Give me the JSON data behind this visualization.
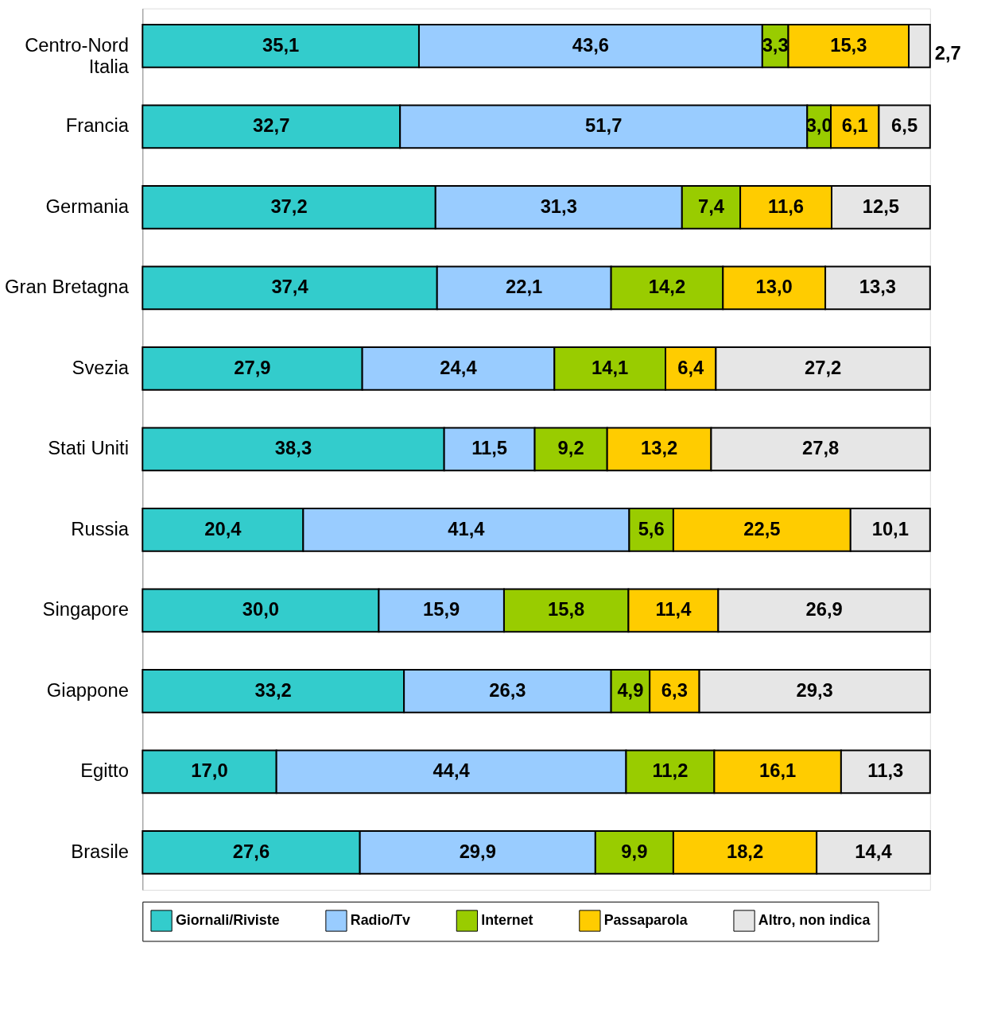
{
  "chart_data": {
    "type": "bar",
    "orientation": "horizontal",
    "stacked": true,
    "legend": "bottom",
    "grid": false,
    "categories": [
      "Centro-Nord\nItalia",
      "Francia",
      "Germania",
      "Gran Bretagna",
      "Svezia",
      "Stati Uniti",
      "Russia",
      "Singapore",
      "Giappone",
      "Egitto",
      "Brasile"
    ],
    "series": [
      {
        "name": "Giornali/Riviste",
        "color": "#33cccc",
        "values": [
          35.1,
          32.7,
          37.2,
          37.4,
          27.9,
          38.3,
          20.4,
          30.0,
          33.2,
          17.0,
          27.6
        ],
        "value_labels": [
          "35,1",
          "32,7",
          "37,2",
          "37,4",
          "27,9",
          "38,3",
          "20,4",
          "30,0",
          "33,2",
          "17,0",
          "27,6"
        ]
      },
      {
        "name": "Radio/Tv",
        "color": "#99ccff",
        "values": [
          43.6,
          51.7,
          31.3,
          22.1,
          24.4,
          11.5,
          41.4,
          15.9,
          26.3,
          44.4,
          29.9
        ],
        "value_labels": [
          "43,6",
          "51,7",
          "31,3",
          "22,1",
          "24,4",
          "11,5",
          "41,4",
          "15,9",
          "26,3",
          "44,4",
          "29,9"
        ]
      },
      {
        "name": "Internet",
        "color": "#99cc00",
        "values": [
          3.3,
          3.0,
          7.4,
          14.2,
          14.1,
          9.2,
          5.6,
          15.8,
          4.9,
          11.2,
          9.9
        ],
        "value_labels": [
          "3,3",
          "3,0",
          "7,4",
          "14,2",
          "14,1",
          "9,2",
          "5,6",
          "15,8",
          "4,9",
          "11,2",
          "9,9"
        ]
      },
      {
        "name": "Passaparola",
        "color": "#ffcc00",
        "values": [
          15.3,
          6.1,
          11.6,
          13.0,
          6.4,
          13.2,
          22.5,
          11.4,
          6.3,
          16.1,
          18.2
        ],
        "value_labels": [
          "15,3",
          "6,1",
          "11,6",
          "13,0",
          "6,4",
          "13,2",
          "22,5",
          "11,4",
          "6,3",
          "16,1",
          "18,2"
        ]
      },
      {
        "name": "Altro, non indica",
        "color": "#e6e6e6",
        "values": [
          2.7,
          6.5,
          12.5,
          13.3,
          27.2,
          27.8,
          10.1,
          26.9,
          29.3,
          11.3,
          14.4
        ],
        "value_labels": [
          "2,7",
          "6,5",
          "12,5",
          "13,3",
          "27,2",
          "27,8",
          "10,1",
          "26,9",
          "29,3",
          "11,3",
          "14,4"
        ]
      }
    ]
  }
}
